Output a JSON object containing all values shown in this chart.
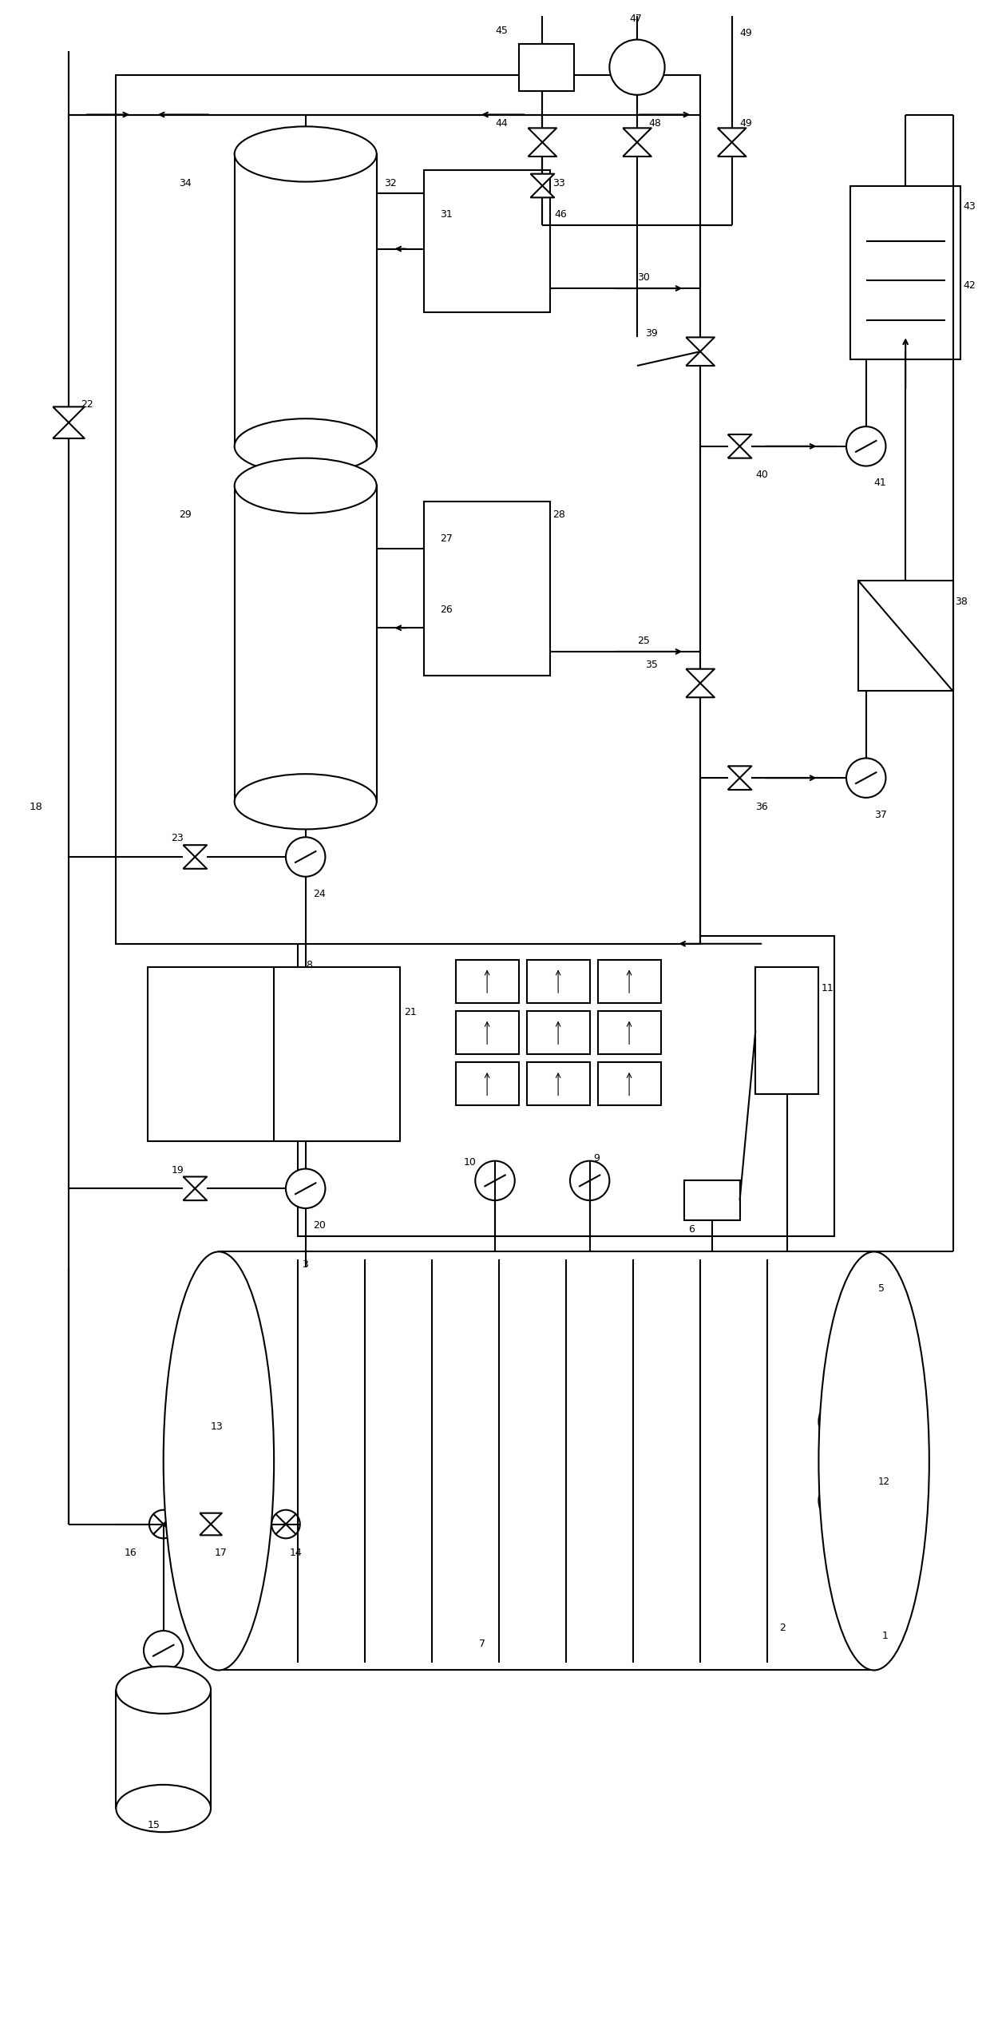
{
  "bg_color": "#ffffff",
  "line_color": "#000000",
  "lw": 1.5,
  "fig_width": 12.4,
  "fig_height": 25.47,
  "dpi": 100
}
